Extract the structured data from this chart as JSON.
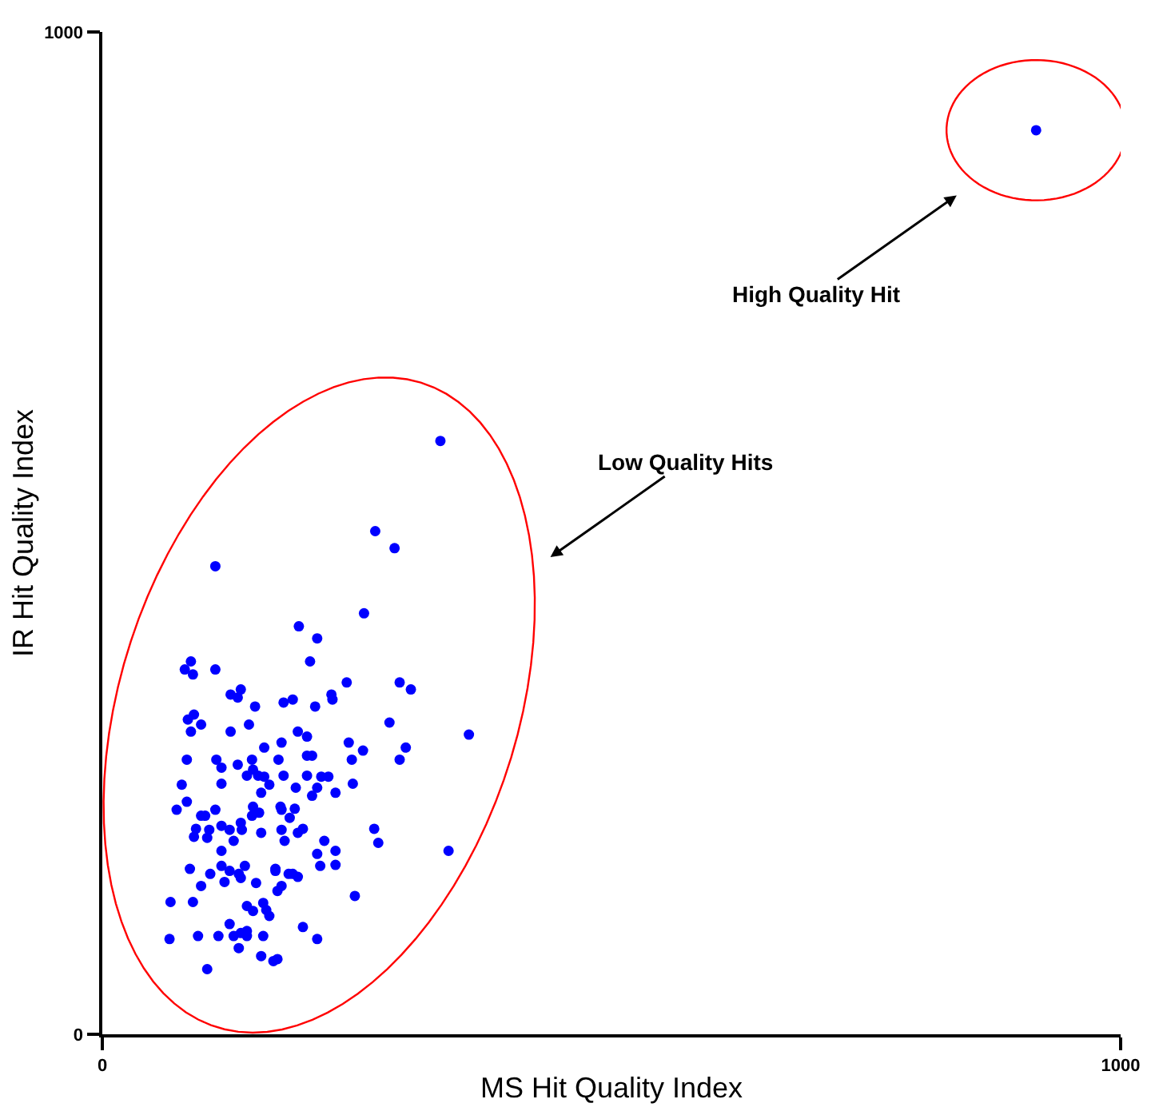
{
  "chart_data": {
    "type": "scatter",
    "xlabel": "MS Hit Quality Index",
    "ylabel": "IR Hit Quality Index",
    "xlim": [
      0,
      1000
    ],
    "ylim": [
      0,
      1000
    ],
    "xticks": [
      0,
      1000
    ],
    "yticks": [
      0,
      1000
    ],
    "marker": "circle",
    "annotations": [
      "High Quality Hit",
      "Low Quality Hits"
    ],
    "series": [
      {
        "color": "#0000ff",
        "x": [
          917,
          332,
          268,
          287,
          111,
          257,
          193,
          211,
          204,
          87,
          81,
          89,
          111,
          240,
          292,
          303,
          126,
          136,
          133,
          178,
          187,
          225,
          226,
          150,
          209,
          84,
          90,
          97,
          87,
          126,
          144,
          282,
          360,
          176,
          192,
          201,
          159,
          242,
          256,
          298,
          292,
          83,
          112,
          117,
          133,
          147,
          173,
          201,
          206,
          245,
          78,
          117,
          142,
          148,
          153,
          159,
          164,
          178,
          201,
          215,
          222,
          246,
          190,
          211,
          206,
          229,
          156,
          83,
          73,
          111,
          97,
          101,
          148,
          147,
          154,
          175,
          176,
          189,
          184,
          92,
          105,
          90,
          103,
          117,
          125,
          136,
          137,
          129,
          156,
          176,
          179,
          192,
          197,
          218,
          267,
          271,
          340,
          117,
          211,
          229,
          214,
          229,
          86,
          106,
          117,
          125,
          120,
          134,
          136,
          140,
          151,
          170,
          170,
          183,
          187,
          192,
          172,
          176,
          97,
          248,
          67,
          89,
          142,
          148,
          158,
          161,
          164,
          125,
          197,
          66,
          94,
          114,
          129,
          136,
          142,
          142,
          158,
          211,
          134,
          156,
          168,
          172,
          103
        ],
        "values": [
          902,
          592,
          502,
          485,
          467,
          420,
          407,
          395,
          372,
          372,
          364,
          359,
          364,
          351,
          351,
          344,
          339,
          344,
          336,
          331,
          334,
          339,
          334,
          327,
          327,
          314,
          319,
          309,
          302,
          302,
          309,
          311,
          299,
          291,
          302,
          297,
          286,
          291,
          283,
          286,
          274,
          274,
          274,
          266,
          269,
          274,
          274,
          278,
          278,
          274,
          249,
          250,
          258,
          264,
          258,
          257,
          249,
          258,
          258,
          257,
          257,
          250,
          246,
          246,
          238,
          241,
          241,
          232,
          224,
          224,
          218,
          218,
          227,
          218,
          221,
          227,
          224,
          225,
          216,
          205,
          204,
          197,
          196,
          208,
          204,
          211,
          204,
          193,
          201,
          204,
          193,
          201,
          205,
          193,
          205,
          191,
          183,
          183,
          180,
          183,
          168,
          169,
          165,
          160,
          168,
          163,
          152,
          160,
          156,
          168,
          151,
          165,
          163,
          160,
          160,
          157,
          143,
          148,
          148,
          138,
          132,
          132,
          128,
          123,
          131,
          124,
          118,
          110,
          107,
          95,
          98,
          98,
          98,
          101,
          103,
          98,
          98,
          95,
          86,
          78,
          73,
          75,
          65
        ]
      }
    ]
  }
}
